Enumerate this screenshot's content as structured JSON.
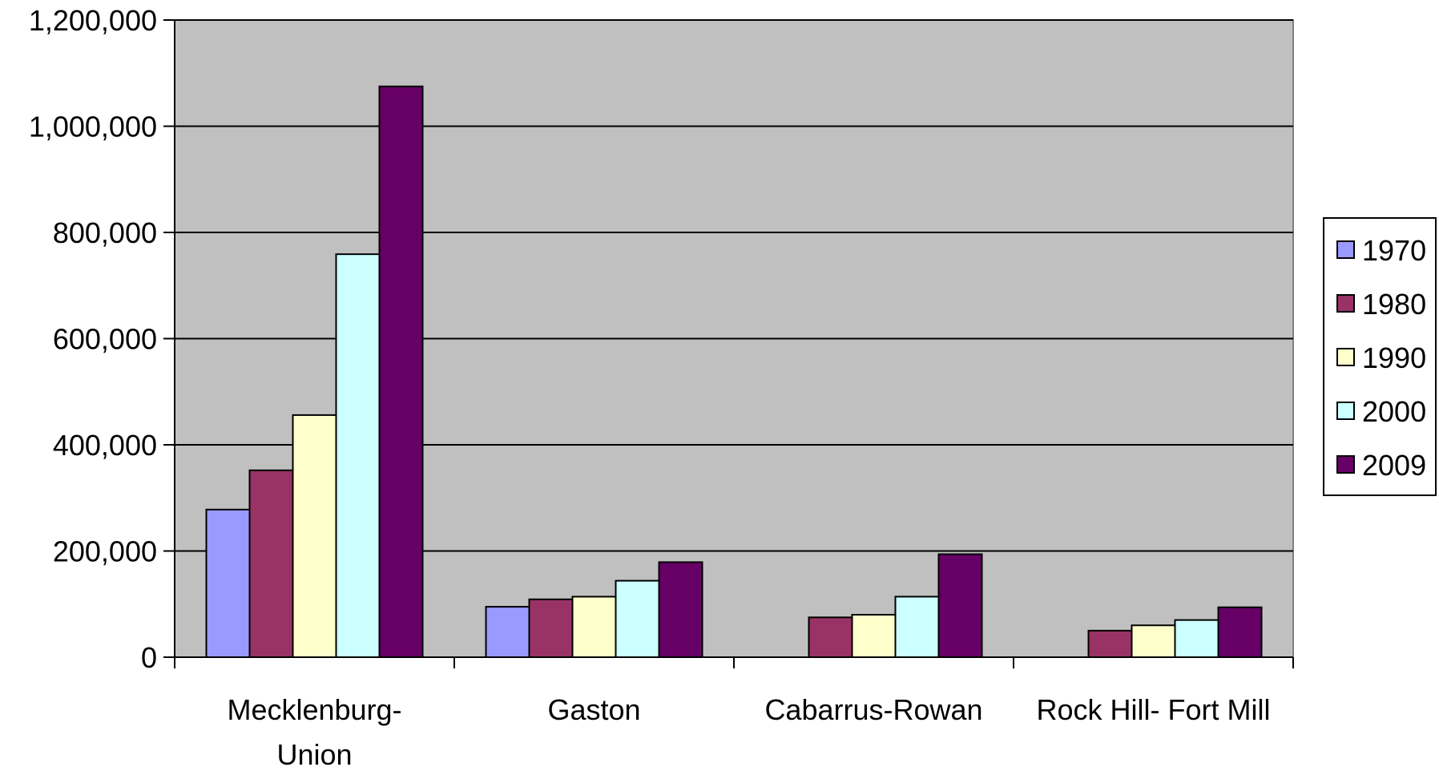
{
  "chart_data": {
    "type": "bar",
    "title": "",
    "xlabel": "",
    "ylabel": "",
    "categories": [
      [
        "Mecklenburg-",
        "Union"
      ],
      [
        "Gaston"
      ],
      [
        "Cabarrus-Rowan"
      ],
      [
        "Rock Hill- Fort Mill"
      ]
    ],
    "series": [
      {
        "name": "1970",
        "color": "#9999FF",
        "values": [
          278000,
          95000,
          null,
          null
        ]
      },
      {
        "name": "1980",
        "color": "#993366",
        "values": [
          352000,
          109000,
          75000,
          50000
        ]
      },
      {
        "name": "1990",
        "color": "#FFFFCC",
        "values": [
          456000,
          114000,
          80000,
          60000
        ]
      },
      {
        "name": "2000",
        "color": "#CCFFFF",
        "values": [
          759000,
          144000,
          114000,
          70000
        ]
      },
      {
        "name": "2009",
        "color": "#660066",
        "values": [
          1075000,
          179000,
          194000,
          94000
        ]
      }
    ],
    "ylim": [
      0,
      1200000
    ],
    "yticks": [
      0,
      200000,
      400000,
      600000,
      800000,
      1000000,
      1200000
    ],
    "ytick_labels": [
      "0",
      "200,000",
      "400,000",
      "600,000",
      "800,000",
      "1,000,000",
      "1,200,000"
    ],
    "grid": true,
    "plot_background": "#C0C0C0",
    "legend_position": "right"
  }
}
